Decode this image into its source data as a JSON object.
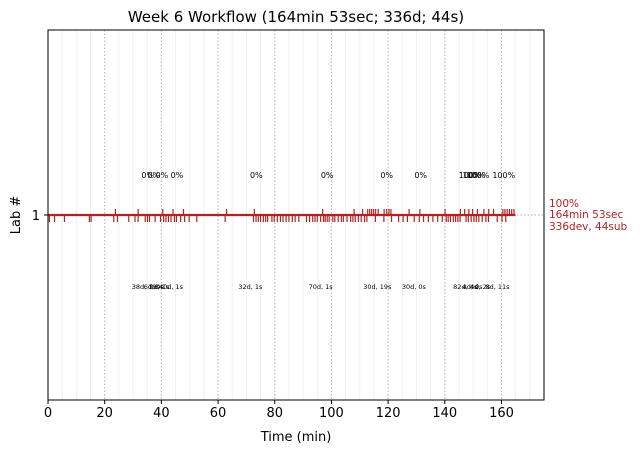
{
  "chart_data": {
    "type": "line",
    "title": "Week 6 Workflow (164min 53sec; 336d; 44s)",
    "xlabel": "Time (min)",
    "ylabel": "Lab #",
    "xlim": [
      0,
      175
    ],
    "ylim": [
      0,
      2
    ],
    "xticks": [
      0,
      20,
      40,
      60,
      80,
      100,
      120,
      140,
      160
    ],
    "yticks": [
      1
    ],
    "grid": "vertical dotted",
    "series": [
      {
        "color": "#b22222",
        "x": [
          0,
          164.9
        ],
        "y": [
          1,
          1
        ]
      }
    ],
    "tick_marks_down": [
      0.5,
      2.3,
      5.8,
      14.6,
      15.2,
      23.2,
      24.5,
      28.5,
      30.7,
      31.8,
      34.3,
      35.1,
      35.8,
      37.8,
      39.7,
      40.8,
      41.6,
      42.5,
      43.4,
      44.6,
      45.3,
      46.8,
      48.2,
      49.8,
      52.5,
      62.5,
      72.5,
      73.4,
      74.2,
      75,
      76,
      76.8,
      77.5,
      79,
      79.8,
      80.9,
      82,
      82.9,
      84,
      85,
      86.2,
      87.2,
      88.5,
      91.2,
      92.3,
      93.4,
      94.2,
      95,
      96.2,
      97.2,
      97.8,
      98.5,
      99.2,
      100.5,
      101.2,
      102.4,
      103.5,
      104.2,
      105.5,
      106.8,
      107.6,
      108.4,
      109.5,
      110.5,
      111.7,
      112.5,
      115.5,
      118.5,
      121.2,
      123.7,
      125.3,
      126.8,
      129.2,
      131,
      132.5,
      134.2,
      135.8,
      137.5,
      139.1,
      140.5,
      141.2,
      142,
      143,
      143.8,
      144.6,
      145.4,
      147.5,
      148.3,
      149.3,
      150.3,
      151.1,
      152,
      153.2,
      154.5,
      155.4,
      158.5,
      160.2,
      161.5
    ],
    "tick_marks_up": [
      23.8,
      31.8,
      40.5,
      44.1,
      47.8,
      63,
      72.8,
      96.9,
      108,
      111,
      112.8,
      113.5,
      114.2,
      114.9,
      115.6,
      116.5,
      118.6,
      119.5,
      120.3,
      121,
      127.4,
      131.2,
      140.1,
      145.5,
      147,
      148.5,
      149.8,
      151.5,
      153.8,
      155.5,
      157.2,
      160.5,
      161.2,
      162,
      162.8,
      163.6,
      164.4
    ],
    "annotations_top": [
      {
        "x": 35.2,
        "text": "0%"
      },
      {
        "x": 37.3,
        "text": "0%"
      },
      {
        "x": 40.2,
        "text": "0%"
      },
      {
        "x": 45.5,
        "text": "0%"
      },
      {
        "x": 73.5,
        "text": "0%"
      },
      {
        "x": 98.5,
        "text": "0%"
      },
      {
        "x": 119.5,
        "text": "0%"
      },
      {
        "x": 131.5,
        "text": "0%"
      },
      {
        "x": 148.9,
        "text": "100%"
      },
      {
        "x": 150.3,
        "text": "100%"
      },
      {
        "x": 151.7,
        "text": "100%"
      },
      {
        "x": 160.8,
        "text": "100%"
      }
    ],
    "annotations_bottom": [
      {
        "x": 34.5,
        "text": "38d, 19s"
      },
      {
        "x": 37.3,
        "text": "6d, 0s"
      },
      {
        "x": 39.3,
        "text": "8d, 1s"
      },
      {
        "x": 43.4,
        "text": "40d, 1s"
      },
      {
        "x": 71.4,
        "text": "32d, 1s"
      },
      {
        "x": 96.2,
        "text": "70d, 1s"
      },
      {
        "x": 116.2,
        "text": "30d, 19s"
      },
      {
        "x": 129.1,
        "text": "30d, 0s"
      },
      {
        "x": 147.2,
        "text": "82d, 4s"
      },
      {
        "x": 149.8,
        "text": "4d, 0s"
      },
      {
        "x": 152.5,
        "text": "4d, 2s"
      },
      {
        "x": 158.6,
        "text": "8d, 11s"
      }
    ],
    "right_label": [
      "100%",
      "164min 53sec",
      "336dev, 44sub"
    ]
  }
}
